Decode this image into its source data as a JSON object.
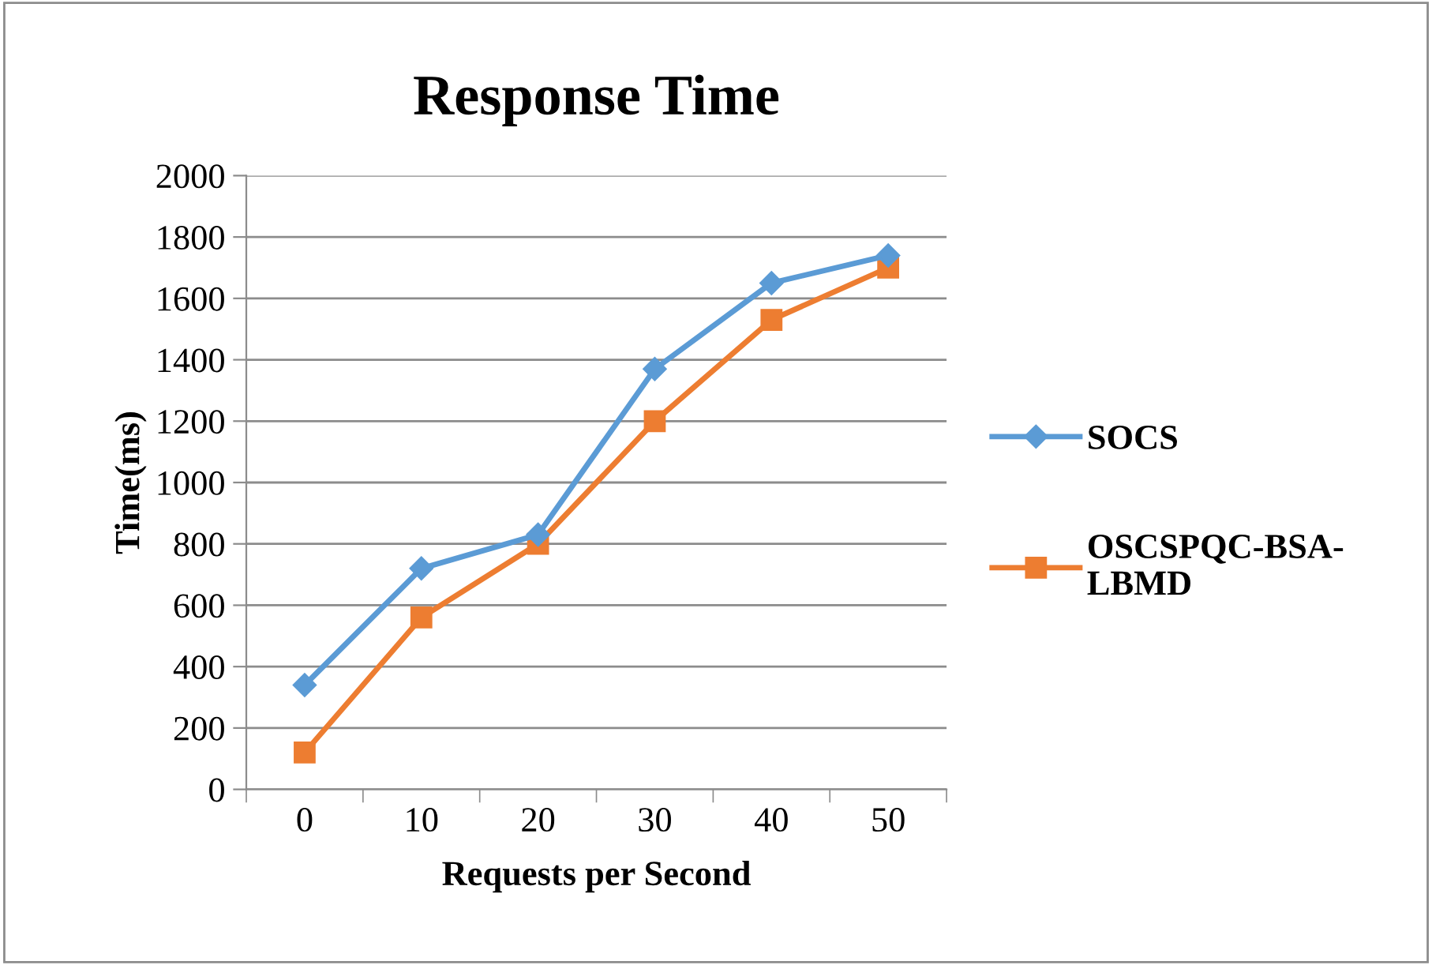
{
  "chart_data": {
    "type": "line",
    "title": "Response Time",
    "xlabel": "Requests per Second",
    "ylabel": "Time(ms)",
    "categories": [
      "0",
      "10",
      "20",
      "30",
      "40",
      "50"
    ],
    "series": [
      {
        "name": "SOCS",
        "color": "#5b9bd5",
        "marker": "diamond",
        "values": [
          340,
          720,
          830,
          1370,
          1650,
          1740
        ]
      },
      {
        "name": "OSCSPQC-BSA-LBMD",
        "color": "#ed7d31",
        "marker": "square",
        "values": [
          120,
          560,
          800,
          1200,
          1530,
          1700
        ]
      }
    ],
    "ylim": [
      0,
      2000
    ],
    "yticks": [
      0,
      200,
      400,
      600,
      800,
      1000,
      1200,
      1400,
      1600,
      1800,
      2000
    ],
    "grid": "y",
    "legend": "right",
    "line_style": "solid"
  }
}
